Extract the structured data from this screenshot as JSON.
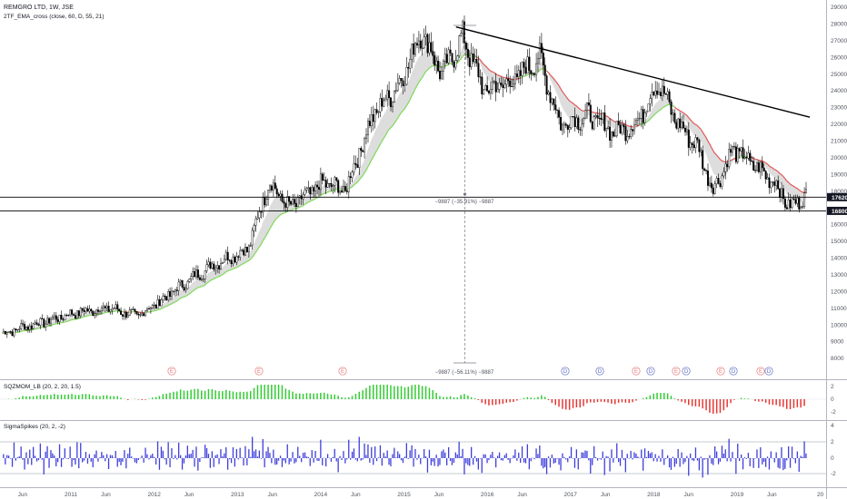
{
  "header": {
    "symbol_title": "REMGRO LTD, 1W, JSE",
    "indicator_main": "2TF_EMA_cross (close, 60, D, 55, 21)"
  },
  "panes": {
    "squeeze_title": "SQZMOM_LB (20, 2, 20, 1.5)",
    "sigma_title": "SigmaSpikes (20, 2, -2)"
  },
  "price_axis": {
    "ticks": [
      "29000",
      "28000",
      "27000",
      "26000",
      "25000",
      "24000",
      "23000",
      "22000",
      "21000",
      "20000",
      "19000",
      "18000",
      "16000",
      "15000",
      "14000",
      "13000",
      "12000",
      "11000",
      "10000",
      "9000",
      "8000"
    ],
    "tick_values": [
      29000,
      28000,
      27000,
      26000,
      25000,
      24000,
      23000,
      22000,
      21000,
      20000,
      19000,
      18000,
      16000,
      15000,
      14000,
      13000,
      12000,
      11000,
      10000,
      9000,
      8000
    ],
    "last_price_tag": "17620",
    "support_tag": "16800"
  },
  "squeeze_axis": {
    "ticks": [
      "2",
      "0",
      "-2"
    ]
  },
  "sigma_axis": {
    "ticks": [
      "4",
      "2",
      "0",
      "-2"
    ]
  },
  "time_axis": {
    "labels": [
      "Jun",
      "2011",
      "Jun",
      "2012",
      "Jun",
      "2013",
      "Jun",
      "2014",
      "Jun",
      "2015",
      "Jun",
      "2016",
      "Jun",
      "2017",
      "Jun",
      "2018",
      "Jun",
      "2019",
      "Jun",
      "20"
    ]
  },
  "measure": {
    "upper_label": "−9887 (−35.91%) −9887",
    "lower_label": "−9887 (−56.11%) −9887"
  },
  "markers": [
    {
      "letter": "E",
      "color": "#e57373"
    },
    {
      "letter": "E",
      "color": "#e57373"
    },
    {
      "letter": "E",
      "color": "#e57373"
    },
    {
      "letter": "D",
      "color": "#5c6bc0"
    },
    {
      "letter": "D",
      "color": "#5c6bc0"
    },
    {
      "letter": "E",
      "color": "#e57373"
    },
    {
      "letter": "D",
      "color": "#5c6bc0"
    },
    {
      "letter": "E",
      "color": "#e57373"
    },
    {
      "letter": "D",
      "color": "#5c6bc0"
    },
    {
      "letter": "E",
      "color": "#e57373"
    },
    {
      "letter": "D",
      "color": "#5c6bc0"
    },
    {
      "letter": "E",
      "color": "#e57373"
    },
    {
      "letter": "D",
      "color": "#5c6bc0"
    }
  ],
  "colors": {
    "candle": "#000000",
    "ema_fast_up": "#7ed957",
    "ema_slow_down": "#e05656",
    "cloud": "#d9d9d9",
    "squeeze_up": "#33cc33",
    "squeeze_down": "#e53935",
    "sigma_bar": "#3f3fdc",
    "trendline": "#000000"
  },
  "chart_data": {
    "type": "candlestick",
    "title": "REMGRO LTD, 1W, JSE",
    "xlabel": "",
    "ylabel": "",
    "ylim": [
      7600,
      29300
    ],
    "horizontal_levels": [
      17620,
      16800
    ],
    "price_path": [
      {
        "t": "2010-03",
        "close": 9500
      },
      {
        "t": "2010-06",
        "close": 9900
      },
      {
        "t": "2010-09",
        "close": 10200
      },
      {
        "t": "2011-01",
        "close": 10700
      },
      {
        "t": "2011-06",
        "close": 11000
      },
      {
        "t": "2011-10",
        "close": 10500
      },
      {
        "t": "2012-01",
        "close": 11300
      },
      {
        "t": "2012-06",
        "close": 12800
      },
      {
        "t": "2012-10",
        "close": 13800
      },
      {
        "t": "2013-02",
        "close": 14500
      },
      {
        "t": "2013-05",
        "close": 18500
      },
      {
        "t": "2013-08",
        "close": 17000
      },
      {
        "t": "2014-01",
        "close": 18500
      },
      {
        "t": "2014-04",
        "close": 18000
      },
      {
        "t": "2014-08",
        "close": 22500
      },
      {
        "t": "2014-12",
        "close": 24500
      },
      {
        "t": "2015-03",
        "close": 27500
      },
      {
        "t": "2015-06",
        "close": 25000
      },
      {
        "t": "2015-09",
        "close": 27200
      },
      {
        "t": "2015-12",
        "close": 24000
      },
      {
        "t": "2016-04",
        "close": 24500
      },
      {
        "t": "2016-08",
        "close": 26000
      },
      {
        "t": "2016-11",
        "close": 22000
      },
      {
        "t": "2017-03",
        "close": 22500
      },
      {
        "t": "2017-07",
        "close": 21500
      },
      {
        "t": "2017-10",
        "close": 22000
      },
      {
        "t": "2018-01",
        "close": 24500
      },
      {
        "t": "2018-04",
        "close": 22000
      },
      {
        "t": "2018-07",
        "close": 20500
      },
      {
        "t": "2018-09",
        "close": 18000
      },
      {
        "t": "2018-12",
        "close": 20500
      },
      {
        "t": "2019-03",
        "close": 19500
      },
      {
        "t": "2019-06",
        "close": 18500
      },
      {
        "t": "2019-08",
        "close": 17000
      },
      {
        "t": "2019-10",
        "close": 17620
      }
    ],
    "trendline": [
      {
        "t": "2015-08",
        "value": 27800
      },
      {
        "t": "2019-11",
        "value": 22400
      }
    ]
  }
}
